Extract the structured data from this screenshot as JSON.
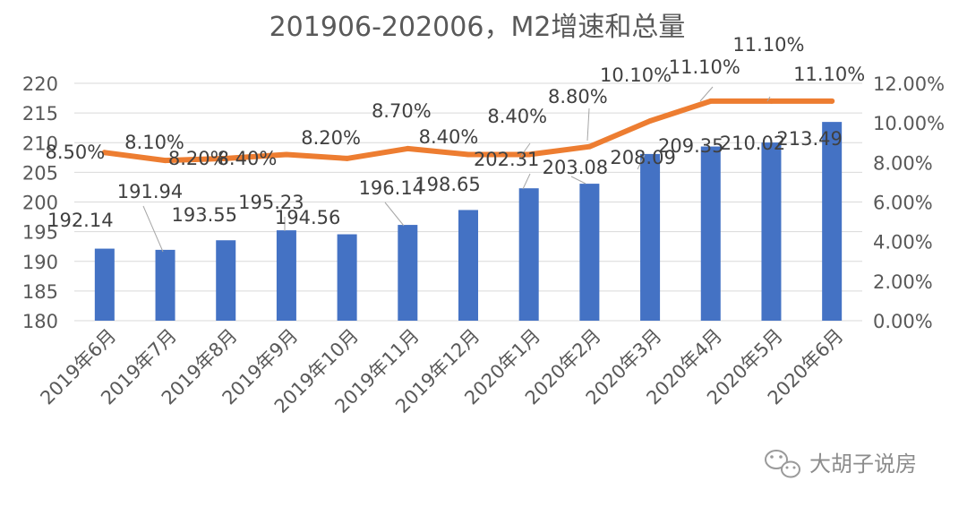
{
  "chart_data": {
    "type": "bar+line",
    "title": "201906-202006，M2增速和总量",
    "categories": [
      "2019年6月",
      "2019年7月",
      "2019年8月",
      "2019年9月",
      "2019年10月",
      "2019年11月",
      "2019年12月",
      "2020年1月",
      "2020年2月",
      "2020年3月",
      "2020年4月",
      "2020年5月",
      "2020年6月"
    ],
    "series": [
      {
        "type": "bar",
        "axis": "left",
        "color": "#4472C4",
        "values": [
          192.14,
          191.94,
          193.55,
          195.23,
          194.56,
          196.14,
          198.65,
          202.31,
          203.08,
          208.09,
          209.35,
          210.02,
          213.49
        ],
        "labels": [
          "192.14",
          "191.94",
          "193.55",
          "195.23",
          "194.56",
          "196.14",
          "198.65",
          "202.31",
          "203.08",
          "208.09",
          "209.35",
          "210.02",
          "213.49"
        ]
      },
      {
        "type": "line",
        "axis": "right",
        "color": "#ED7D31",
        "values": [
          8.5,
          8.1,
          8.2,
          8.4,
          8.2,
          8.7,
          8.4,
          8.4,
          8.8,
          10.1,
          11.1,
          11.1,
          11.1
        ],
        "labels": [
          "8.50%",
          "8.10%",
          "8.20%",
          "8.40%",
          "8.20%",
          "8.70%",
          "8.40%",
          "8.40%",
          "8.80%",
          "10.10%",
          "11.10%",
          "11.10%",
          "11.10%"
        ]
      }
    ],
    "yleft": {
      "min": 180,
      "max": 220,
      "step": 5,
      "ticks": [
        "180",
        "185",
        "190",
        "195",
        "200",
        "205",
        "210",
        "215",
        "220"
      ]
    },
    "yright": {
      "min": 0,
      "max": 12,
      "step": 2,
      "ticks": [
        "0.00%",
        "2.00%",
        "4.00%",
        "6.00%",
        "8.00%",
        "10.00%",
        "12.00%"
      ]
    },
    "grid": true,
    "legend": "none"
  },
  "watermark": {
    "icon": "wechat-icon",
    "text": "大胡子说房"
  }
}
